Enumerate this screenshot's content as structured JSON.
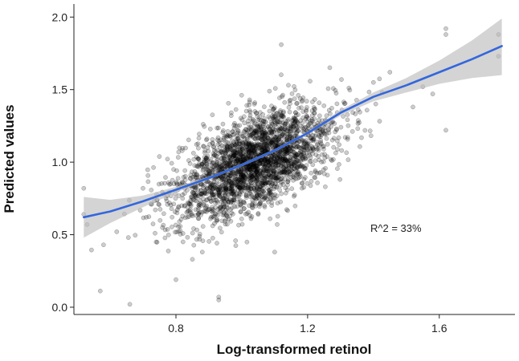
{
  "chart_data": {
    "type": "scatter",
    "title": "",
    "xlabel": "Log-transformed retinol",
    "ylabel": "Predicted values",
    "xlim": [
      0.49,
      1.83
    ],
    "ylim": [
      -0.05,
      2.09
    ],
    "xticks": [
      0.8,
      1.2,
      1.6
    ],
    "yticks": [
      0.0,
      0.5,
      1.0,
      1.5,
      2.0
    ],
    "xtick_labels": [
      "0.8",
      "1.2",
      "1.6"
    ],
    "ytick_labels": [
      "0.0",
      "0.5",
      "1.0",
      "1.5",
      "2.0"
    ],
    "grid": false,
    "legend": "none",
    "annotation": "R^2 = 33%",
    "point_color": "#000000",
    "point_opacity": 0.2,
    "line_color": "#3366dd",
    "band_color": "#bdbdbd",
    "series": [
      {
        "kind": "points",
        "distribution": {
          "n": 2600,
          "x_mean": 1.04,
          "x_sd": 0.12,
          "slope": 0.93,
          "intercept": 0.03,
          "residual_sd": 0.16
        },
        "outliers": [
          {
            "x": 0.52,
            "y": 0.82
          },
          {
            "x": 0.52,
            "y": 0.64
          },
          {
            "x": 0.53,
            "y": 0.57
          },
          {
            "x": 0.66,
            "y": 0.02
          },
          {
            "x": 0.8,
            "y": 0.19
          },
          {
            "x": 0.93,
            "y": 0.05
          },
          {
            "x": 0.93,
            "y": 0.07
          },
          {
            "x": 1.12,
            "y": 1.81
          },
          {
            "x": 1.62,
            "y": 1.92
          },
          {
            "x": 1.62,
            "y": 1.88
          },
          {
            "x": 1.62,
            "y": 1.22
          },
          {
            "x": 1.78,
            "y": 1.88
          },
          {
            "x": 1.78,
            "y": 1.73
          },
          {
            "x": 1.58,
            "y": 1.47
          },
          {
            "x": 1.55,
            "y": 1.52
          },
          {
            "x": 1.52,
            "y": 1.38
          },
          {
            "x": 0.58,
            "y": 0.43
          },
          {
            "x": 0.62,
            "y": 0.52
          },
          {
            "x": 0.7,
            "y": 0.82
          },
          {
            "x": 0.71,
            "y": 0.62
          },
          {
            "x": 0.74,
            "y": 0.45
          },
          {
            "x": 0.85,
            "y": 0.33
          },
          {
            "x": 0.88,
            "y": 0.38
          },
          {
            "x": 1.1,
            "y": 0.38
          },
          {
            "x": 1.4,
            "y": 1.55
          },
          {
            "x": 1.45,
            "y": 1.62
          }
        ]
      },
      {
        "kind": "smooth",
        "x": [
          0.52,
          0.6,
          0.7,
          0.8,
          0.9,
          1.0,
          1.05,
          1.1,
          1.2,
          1.3,
          1.4,
          1.5,
          1.6,
          1.7,
          1.79
        ],
        "y": [
          0.62,
          0.66,
          0.73,
          0.81,
          0.89,
          0.98,
          1.03,
          1.08,
          1.2,
          1.34,
          1.45,
          1.53,
          1.62,
          1.71,
          1.8
        ],
        "lower": [
          0.48,
          0.58,
          0.69,
          0.79,
          0.88,
          0.97,
          1.02,
          1.07,
          1.19,
          1.32,
          1.42,
          1.48,
          1.54,
          1.58,
          1.6
        ],
        "upper": [
          0.76,
          0.74,
          0.77,
          0.83,
          0.9,
          0.99,
          1.04,
          1.09,
          1.21,
          1.36,
          1.48,
          1.58,
          1.7,
          1.84,
          1.99
        ]
      }
    ]
  }
}
